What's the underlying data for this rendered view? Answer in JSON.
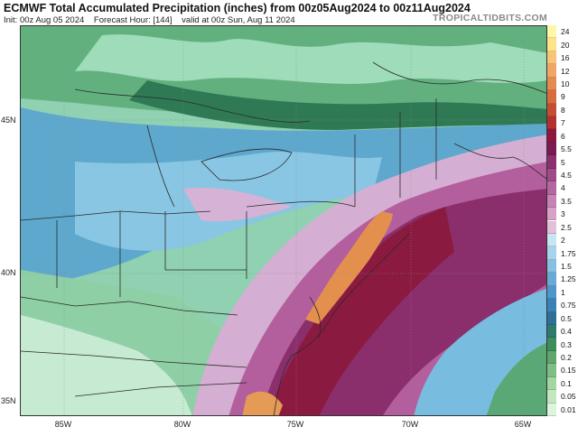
{
  "header": {
    "title": "ECMWF Total Accumulated Precipitation (inches) from 00z05Aug2024 to 00z11Aug2024",
    "init": "Init: 00z Aug 05 2024",
    "forecast_hour": "Forecast Hour: [144]",
    "valid": "valid at 00z Sun, Aug 11 2024",
    "logo": "TROPICALTIDBITS.COM"
  },
  "axes": {
    "lat_labels": [
      "45N",
      "40N",
      "35N"
    ],
    "lon_labels": [
      "85W",
      "80W",
      "75W",
      "70W",
      "65W"
    ]
  },
  "colorbar": {
    "levels": [
      "24",
      "20",
      "16",
      "12",
      "10",
      "9",
      "8",
      "7",
      "6",
      "5.5",
      "5",
      "4.5",
      "4",
      "3.5",
      "3",
      "2.5",
      "2",
      "1.75",
      "1.5",
      "1.25",
      "1",
      "0.75",
      "0.5",
      "0.4",
      "0.3",
      "0.2",
      "0.15",
      "0.1",
      "0.05",
      "0.01"
    ],
    "colors": [
      "#fff7a8",
      "#fde38a",
      "#f8c478",
      "#f0a766",
      "#e48a52",
      "#d76d3e",
      "#c54d31",
      "#b3302f",
      "#8e1740",
      "#7b1b52",
      "#8c3070",
      "#a04a88",
      "#b466a0",
      "#c684b5",
      "#d6a2c8",
      "#e3bfd9",
      "#c9e4f3",
      "#a8d3ec",
      "#86c0e2",
      "#68abd6",
      "#4f97c9",
      "#3a81b7",
      "#2f6e97",
      "#2f7a6d",
      "#3f8d5c",
      "#5fa66f",
      "#7fbf86",
      "#a3d6a3",
      "#c3e8c1",
      "#dff4de"
    ]
  },
  "colors": {
    "light_green": "#a8e0bf",
    "green": "#5faa76",
    "dark_green": "#3a8a5a",
    "teal_blue": "#4d9fc4",
    "blue": "#6fb5d8",
    "lavender": "#d8b4d2",
    "magenta": "#a7508c",
    "purple": "#7d2a63",
    "maroon": "#8a1a3c",
    "orange": "#e6954f",
    "boundary": "#2a2a2a"
  }
}
